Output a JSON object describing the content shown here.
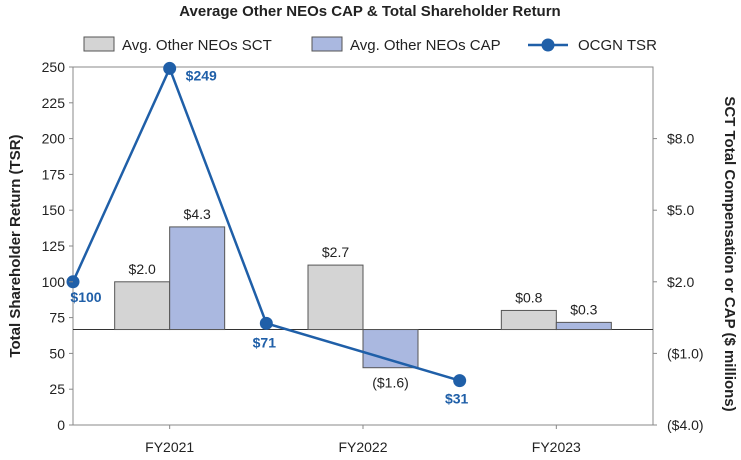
{
  "chart_data": {
    "type": "bar",
    "title": "Average Other NEOs CAP & Total Shareholder Return",
    "categories": [
      "FY2021",
      "FY2022",
      "FY2023"
    ],
    "series": [
      {
        "name": "Avg. Other NEOs SCT",
        "axis": "right",
        "values": [
          2.0,
          2.7,
          0.8
        ],
        "labels": [
          "$2.0",
          "$2.7",
          "$0.8"
        ],
        "color": "#d4d4d4"
      },
      {
        "name": "Avg. Other NEOs CAP",
        "axis": "right",
        "values": [
          4.3,
          -1.6,
          0.3
        ],
        "labels": [
          "$4.3",
          "($1.6)",
          "$0.3"
        ],
        "color": "#aab8e0"
      },
      {
        "name": "OCGN TSR",
        "type": "line",
        "axis": "left",
        "x": [
          -0.5,
          0,
          0.5,
          1.5
        ],
        "values": [
          100,
          249,
          71,
          31
        ],
        "labels": [
          "$100",
          "$249",
          "$71",
          "$31"
        ],
        "color": "#1f5fa8"
      }
    ],
    "ylabel": "Total Shareholder Return (TSR)",
    "ylim": [
      0,
      250
    ],
    "yticks": [
      "0",
      "25",
      "50",
      "75",
      "100",
      "125",
      "150",
      "175",
      "200",
      "225",
      "250"
    ],
    "y2label": "SCT Total Compensation or CAP ($ millions)",
    "y2lim": [
      -4.0,
      11.0
    ],
    "y2ticks": [
      {
        "value": -4.0,
        "label": "($4.0)"
      },
      {
        "value": -1.0,
        "label": "($1.0)"
      },
      {
        "value": 2.0,
        "label": "$2.0"
      },
      {
        "value": 5.0,
        "label": "$5.0"
      },
      {
        "value": 8.0,
        "label": "$8.0"
      }
    ],
    "legend": [
      "Avg. Other NEOs SCT",
      "Avg. Other NEOs CAP",
      "OCGN TSR"
    ],
    "legend_position": "top",
    "grid": false
  }
}
